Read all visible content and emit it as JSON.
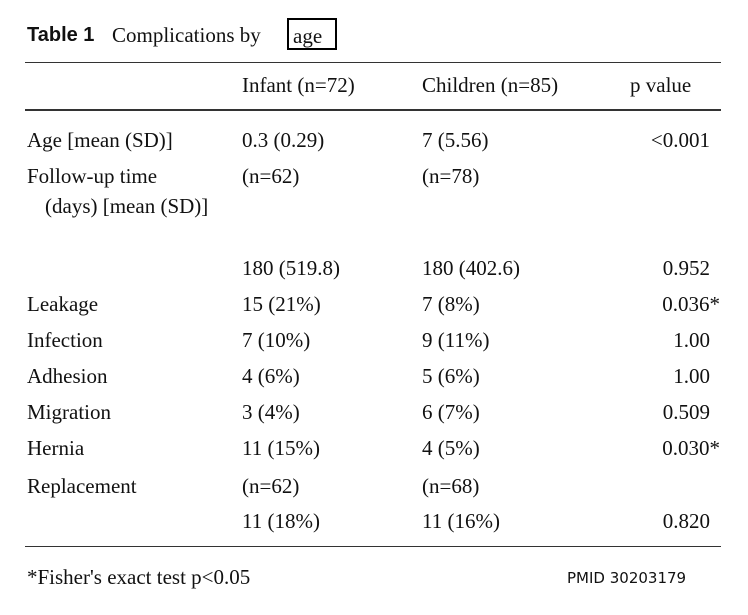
{
  "header": {
    "label": "Table 1",
    "caption": "Complications by",
    "highlight": "age"
  },
  "table": {
    "columns": {
      "infant": "Infant (n=72)",
      "children": "Children (n=85)",
      "p": "p value"
    },
    "rows": [
      {
        "label": "Age [mean (SD)]",
        "infant": "0.3 (0.29)",
        "children": "7 (5.56)",
        "p": "<0.001"
      },
      {
        "label": "Follow-up time (days) [mean (SD)]",
        "infant": "(n=62)",
        "children": "(n=78)"
      },
      {
        "infant": "180 (519.8)",
        "children": "180 (402.6)",
        "p": "0.952"
      },
      {
        "label": "Leakage",
        "infant": "15 (21%)",
        "children": "7 (8%)",
        "p": "0.036*"
      },
      {
        "label": "Infection",
        "infant": "7 (10%)",
        "children": "9 (11%)",
        "p": "1.00"
      },
      {
        "label": "Adhesion",
        "infant": "4 (6%)",
        "children": "5 (6%)",
        "p": "1.00"
      },
      {
        "label": "Migration",
        "infant": "3 (4%)",
        "children": "6 (7%)",
        "p": "0.509"
      },
      {
        "label": "Hernia",
        "infant": "11 (15%)",
        "children": "4 (5%)",
        "p": "0.030*"
      },
      {
        "label": "Replacement",
        "infant": "(n=62)",
        "children": "(n=68)"
      },
      {
        "infant": "11 (18%)",
        "children": "11 (16%)",
        "p": "0.820"
      }
    ]
  },
  "footnote": "*Fisher's exact test p<0.05",
  "source": "PMID 30203179"
}
